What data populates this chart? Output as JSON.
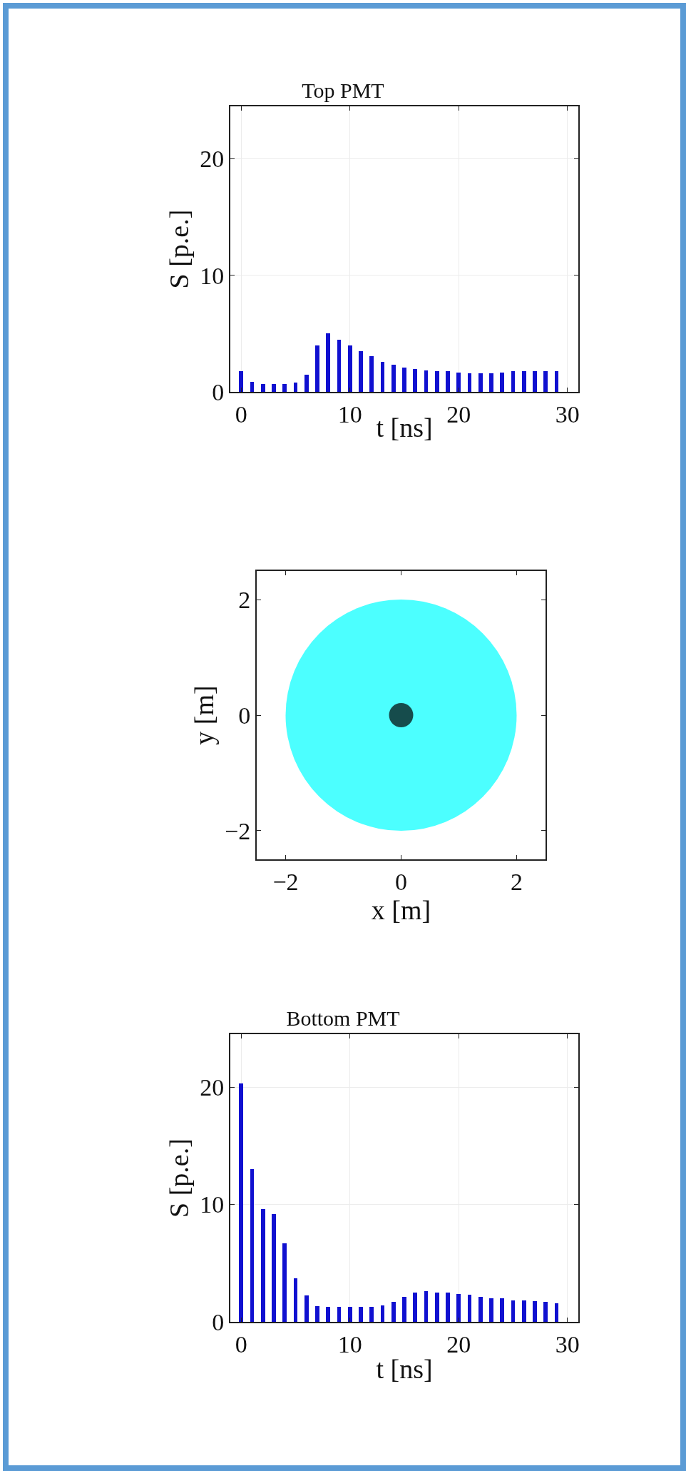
{
  "chart_data": [
    {
      "type": "bar",
      "title": "Top PMT",
      "xlabel": "t [ns]",
      "ylabel": "S [p.e.]",
      "x": [
        0,
        1,
        2,
        3,
        4,
        5,
        6,
        7,
        8,
        9,
        10,
        11,
        12,
        13,
        14,
        15,
        16,
        17,
        18,
        19,
        20,
        21,
        22,
        23,
        24,
        25,
        26,
        27,
        28,
        29
      ],
      "values": [
        1.75,
        0.85,
        0.65,
        0.7,
        0.65,
        0.8,
        1.45,
        4.0,
        5.0,
        4.5,
        4.0,
        3.5,
        3.05,
        2.6,
        2.3,
        2.1,
        1.95,
        1.85,
        1.75,
        1.75,
        1.65,
        1.6,
        1.6,
        1.6,
        1.65,
        1.75,
        1.75,
        1.75,
        1.75,
        1.75
      ],
      "color": "#1010d0",
      "xlim": [
        -1,
        31
      ],
      "xticks": [
        0,
        10,
        20,
        30
      ],
      "ylim": [
        0,
        24.5
      ],
      "yticks": [
        0,
        10,
        20
      ],
      "grid": true
    },
    {
      "type": "bubble",
      "xlabel": "x [m]",
      "ylabel": "y [m]",
      "series": [
        {
          "color": "#00ffff",
          "x": [
            0
          ],
          "values": [
            0
          ],
          "sizes": [
            1
          ]
        },
        {
          "color": "#000000",
          "x": [
            0
          ],
          "values": [
            0
          ],
          "sizes": [
            0.011
          ]
        }
      ],
      "xlim": [
        -2.5,
        2.5
      ],
      "xticks": [
        -2,
        0,
        2
      ],
      "ylim": [
        -2.5,
        2.5
      ],
      "yticks": [
        -2,
        0,
        2
      ],
      "grid": false,
      "marker": "circle"
    },
    {
      "type": "bar",
      "title": "Bottom PMT",
      "xlabel": "t [ns]",
      "ylabel": "S [p.e.]",
      "x": [
        0,
        1,
        2,
        3,
        4,
        5,
        6,
        7,
        8,
        9,
        10,
        11,
        12,
        13,
        14,
        15,
        16,
        17,
        18,
        19,
        20,
        21,
        22,
        23,
        24,
        25,
        26,
        27,
        28,
        29
      ],
      "values": [
        20.3,
        13.0,
        9.6,
        9.2,
        6.7,
        3.7,
        2.25,
        1.35,
        1.25,
        1.25,
        1.25,
        1.25,
        1.3,
        1.4,
        1.7,
        2.15,
        2.5,
        2.6,
        2.5,
        2.5,
        2.35,
        2.3,
        2.15,
        2.0,
        2.0,
        1.85,
        1.8,
        1.75,
        1.7,
        1.6
      ],
      "color": "#1010d0",
      "xlim": [
        -1,
        31
      ],
      "xticks": [
        0,
        10,
        20,
        30
      ],
      "ylim": [
        0,
        24.5
      ],
      "yticks": [
        0,
        10,
        20
      ],
      "grid": true
    }
  ]
}
